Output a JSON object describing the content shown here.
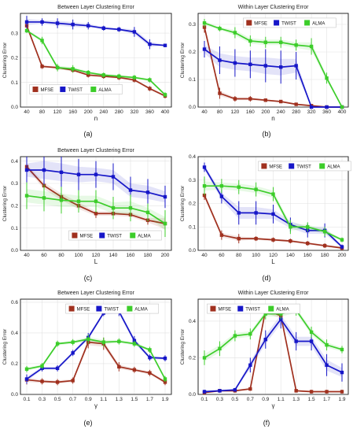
{
  "colors": {
    "MFSE": "#a0301e",
    "TWIST": "#1616c8",
    "ALMA": "#3ccd2a",
    "grid": "#e2e2e2"
  },
  "chart_data": [
    {
      "type": "line",
      "title": "Between Layer Clustering Error",
      "xlabel": "n",
      "ylabel": "Clustering Error",
      "caption": "(a)",
      "x": [
        40,
        80,
        120,
        160,
        200,
        240,
        280,
        320,
        360,
        400
      ],
      "xticks": [
        "40",
        "80",
        "120",
        "160",
        "200",
        "240",
        "280",
        "320",
        "360",
        "400"
      ],
      "ylim": [
        0,
        0.38
      ],
      "yticks": [
        0,
        0.1,
        0.2,
        0.3
      ],
      "yticklabels": [
        "0.0",
        "0.1",
        "0.2",
        "0.3"
      ],
      "legend_position": "bottom-left",
      "series": [
        {
          "name": "MFSE",
          "values": [
            0.33,
            0.165,
            0.16,
            0.15,
            0.13,
            0.125,
            0.12,
            0.11,
            0.075,
            0.045
          ],
          "err": [
            0.02,
            0.01,
            0.01,
            0.01,
            0.01,
            0.01,
            0.01,
            0.01,
            0.01,
            0.01
          ]
        },
        {
          "name": "TWIST",
          "values": [
            0.345,
            0.345,
            0.34,
            0.335,
            0.33,
            0.32,
            0.315,
            0.305,
            0.255,
            0.25
          ],
          "err": [
            0.025,
            0.015,
            0.02,
            0.02,
            0.015,
            0.01,
            0.01,
            0.02,
            0.02,
            0.005
          ]
        },
        {
          "name": "ALMA",
          "values": [
            0.31,
            0.27,
            0.16,
            0.155,
            0.14,
            0.13,
            0.125,
            0.12,
            0.11,
            0.05
          ],
          "err": [
            0.01,
            0.015,
            0.015,
            0.015,
            0.01,
            0.01,
            0.01,
            0.01,
            0.01,
            0.01
          ]
        }
      ]
    },
    {
      "type": "line",
      "title": "Within Layer Clustering Error",
      "xlabel": "n",
      "ylabel": "Clustering Error",
      "caption": "(b)",
      "x": [
        40,
        80,
        120,
        160,
        200,
        240,
        280,
        320,
        360,
        400
      ],
      "xticks": [
        "40",
        "80",
        "120",
        "160",
        "200",
        "240",
        "280",
        "320",
        "360",
        "400"
      ],
      "ylim": [
        0,
        0.34
      ],
      "yticks": [
        0,
        0.1,
        0.2,
        0.3
      ],
      "yticklabels": [
        "0.0",
        "0.1",
        "0.2",
        "0.3"
      ],
      "legend_position": "top-center",
      "series": [
        {
          "name": "MFSE",
          "values": [
            0.29,
            0.05,
            0.03,
            0.03,
            0.025,
            0.02,
            0.01,
            0.005,
            0.0,
            0.0
          ],
          "err": [
            0.02,
            0.02,
            0.01,
            0.01,
            0.005,
            0.005,
            0.005,
            0.003,
            0.0,
            0.0
          ]
        },
        {
          "name": "TWIST",
          "values": [
            0.21,
            0.17,
            0.16,
            0.155,
            0.15,
            0.145,
            0.15,
            0.0,
            0.0,
            0.0
          ],
          "err": [
            0.03,
            0.05,
            0.05,
            0.05,
            0.06,
            0.06,
            0.05,
            0.0,
            0.0,
            0.0
          ]
        },
        {
          "name": "ALMA",
          "values": [
            0.305,
            0.285,
            0.27,
            0.24,
            0.235,
            0.235,
            0.225,
            0.22,
            0.105,
            0.0
          ],
          "err": [
            0.015,
            0.01,
            0.02,
            0.02,
            0.02,
            0.02,
            0.02,
            0.03,
            0.02,
            0.0
          ]
        }
      ]
    },
    {
      "type": "line",
      "title": "Between Layer Clustering Error",
      "xlabel": "L",
      "ylabel": "Clustering Error",
      "caption": "(c)",
      "x": [
        40,
        60,
        80,
        100,
        120,
        140,
        160,
        180,
        200
      ],
      "xticks": [
        "40",
        "60",
        "80",
        "100",
        "120",
        "140",
        "160",
        "180",
        "200"
      ],
      "ylim": [
        0,
        0.42
      ],
      "yticks": [
        0,
        0.1,
        0.2,
        0.3,
        0.4
      ],
      "yticklabels": [
        "0.0",
        "0.1",
        "0.2",
        "0.3",
        "0.4"
      ],
      "legend_position": "bottom-center",
      "series": [
        {
          "name": "MFSE",
          "values": [
            0.375,
            0.29,
            0.24,
            0.2,
            0.165,
            0.165,
            0.16,
            0.135,
            0.12
          ],
          "err": [
            0.02,
            0.03,
            0.03,
            0.03,
            0.02,
            0.02,
            0.02,
            0.02,
            0.05
          ]
        },
        {
          "name": "TWIST",
          "values": [
            0.36,
            0.36,
            0.35,
            0.34,
            0.34,
            0.33,
            0.27,
            0.26,
            0.24
          ],
          "err": [
            0.06,
            0.08,
            0.08,
            0.07,
            0.06,
            0.06,
            0.06,
            0.06,
            0.05
          ]
        },
        {
          "name": "ALMA",
          "values": [
            0.245,
            0.235,
            0.225,
            0.22,
            0.22,
            0.19,
            0.19,
            0.17,
            0.12
          ],
          "err": [
            0.06,
            0.06,
            0.06,
            0.05,
            0.05,
            0.05,
            0.06,
            0.04,
            0.06
          ]
        }
      ]
    },
    {
      "type": "line",
      "title": "",
      "xlabel": "L",
      "ylabel": "Clustering Error",
      "caption": "(d)",
      "x": [
        40,
        60,
        80,
        100,
        120,
        140,
        160,
        180,
        200
      ],
      "xticks": [
        "40",
        "60",
        "80",
        "100",
        "120",
        "140",
        "160",
        "180",
        "200"
      ],
      "ylim": [
        0,
        0.4
      ],
      "yticks": [
        0,
        0.1,
        0.2,
        0.3,
        0.4
      ],
      "yticklabels": [
        "0.0",
        "0.1",
        "0.2",
        "0.3",
        "0.4"
      ],
      "legend_position": "top-right",
      "series": [
        {
          "name": "MFSE",
          "values": [
            0.235,
            0.065,
            0.05,
            0.05,
            0.045,
            0.04,
            0.03,
            0.02,
            0.01
          ],
          "err": [
            0.02,
            0.02,
            0.02,
            0.01,
            0.01,
            0.01,
            0.01,
            0.01,
            0.01
          ]
        },
        {
          "name": "TWIST",
          "values": [
            0.355,
            0.23,
            0.16,
            0.16,
            0.155,
            0.11,
            0.085,
            0.085,
            0.015
          ],
          "err": [
            0.02,
            0.03,
            0.05,
            0.05,
            0.04,
            0.03,
            0.03,
            0.03,
            0.01
          ]
        },
        {
          "name": "ALMA",
          "values": [
            0.275,
            0.275,
            0.27,
            0.26,
            0.24,
            0.1,
            0.1,
            0.08,
            0.045
          ],
          "err": [
            0.04,
            0.03,
            0.03,
            0.03,
            0.03,
            0.03,
            0.02,
            0.02,
            0.01
          ]
        }
      ]
    },
    {
      "type": "line",
      "title": "Between Layer Clustering Error",
      "xlabel": "γ",
      "ylabel": "Clustering Error",
      "caption": "(e)",
      "x": [
        0.1,
        0.3,
        0.5,
        0.7,
        0.9,
        1.1,
        1.3,
        1.5,
        1.7,
        1.9
      ],
      "xticks": [
        "0.1",
        "0.3",
        "0.5",
        "0.7",
        "0.9",
        "1.1",
        "1.3",
        "1.5",
        "1.7",
        "1.9"
      ],
      "ylim": [
        0,
        0.62
      ],
      "yticks": [
        0,
        0.2,
        0.4,
        0.6
      ],
      "yticklabels": [
        "0.0",
        "0.2",
        "0.4",
        "0.6"
      ],
      "legend_position": "top-center",
      "series": [
        {
          "name": "MFSE",
          "values": [
            0.095,
            0.085,
            0.08,
            0.09,
            0.34,
            0.33,
            0.18,
            0.16,
            0.14,
            0.08
          ],
          "err": [
            0.03,
            0.02,
            0.02,
            0.02,
            0.04,
            0.04,
            0.03,
            0.02,
            0.02,
            0.02
          ]
        },
        {
          "name": "TWIST",
          "values": [
            0.1,
            0.17,
            0.17,
            0.27,
            0.37,
            0.53,
            0.54,
            0.35,
            0.24,
            0.235
          ],
          "err": [
            0.03,
            0.02,
            0.02,
            0.02,
            0.03,
            0.02,
            0.03,
            0.03,
            0.02,
            0.02
          ]
        },
        {
          "name": "ALMA",
          "values": [
            0.165,
            0.185,
            0.33,
            0.34,
            0.36,
            0.34,
            0.345,
            0.33,
            0.29,
            0.1
          ],
          "err": [
            0.02,
            0.02,
            0.02,
            0.02,
            0.03,
            0.03,
            0.02,
            0.02,
            0.02,
            0.02
          ]
        }
      ]
    },
    {
      "type": "line",
      "title": "Within Layer Clustering Error",
      "xlabel": "γ",
      "ylabel": "Clustering Error",
      "caption": "(f)",
      "x": [
        0.1,
        0.3,
        0.5,
        0.7,
        0.9,
        1.1,
        1.3,
        1.5,
        1.7,
        1.9
      ],
      "xticks": [
        "0.1",
        "0.3",
        "0.5",
        "0.7",
        "0.9",
        "1.1",
        "1.3",
        "1.5",
        "1.7",
        "1.9"
      ],
      "ylim": [
        0,
        0.52
      ],
      "yticks": [
        0,
        0.2,
        0.4
      ],
      "yticklabels": [
        "0.0",
        "0.2",
        "0.4"
      ],
      "legend_position": "top-left",
      "series": [
        {
          "name": "MFSE",
          "values": [
            0.01,
            0.02,
            0.02,
            0.03,
            0.46,
            0.43,
            0.02,
            0.015,
            0.015,
            0.015
          ],
          "err": [
            0.01,
            0.01,
            0.01,
            0.01,
            0.03,
            0.03,
            0.01,
            0.01,
            0.01,
            0.01
          ]
        },
        {
          "name": "TWIST",
          "values": [
            0.015,
            0.02,
            0.025,
            0.16,
            0.3,
            0.41,
            0.29,
            0.29,
            0.16,
            0.12
          ],
          "err": [
            0.01,
            0.01,
            0.01,
            0.04,
            0.05,
            0.05,
            0.05,
            0.05,
            0.06,
            0.05
          ]
        },
        {
          "name": "ALMA",
          "values": [
            0.2,
            0.25,
            0.32,
            0.33,
            0.44,
            0.44,
            0.46,
            0.34,
            0.27,
            0.245
          ],
          "err": [
            0.04,
            0.04,
            0.03,
            0.03,
            0.03,
            0.03,
            0.03,
            0.03,
            0.03,
            0.02
          ]
        }
      ]
    }
  ]
}
